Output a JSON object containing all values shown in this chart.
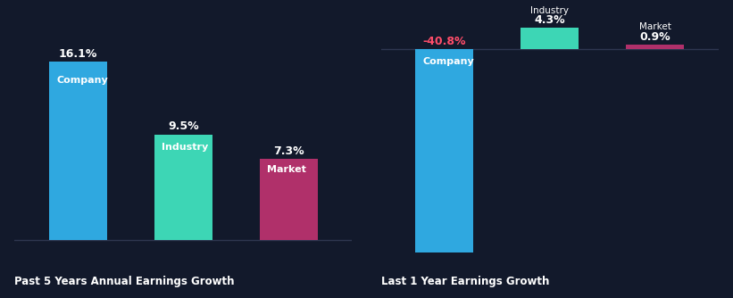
{
  "background_color": "#12192b",
  "chart1": {
    "title": "Past 5 Years Annual Earnings Growth",
    "bars": [
      {
        "label": "Company",
        "value": 16.1,
        "color": "#2fa8e0",
        "label_color": "#ffffff"
      },
      {
        "label": "Industry",
        "value": 9.5,
        "color": "#3dd6b5",
        "label_color": "#ffffff"
      },
      {
        "label": "Market",
        "value": 7.3,
        "color": "#b0306a",
        "label_color": "#ffffff"
      }
    ]
  },
  "chart2": {
    "title": "Last 1 Year Earnings Growth",
    "bars": [
      {
        "label": "Company",
        "value": -40.8,
        "color": "#2fa8e0",
        "label_color": "#ffffff",
        "val_color": "#ff4d6a"
      },
      {
        "label": "Industry",
        "value": 4.3,
        "color": "#3dd6b5",
        "label_color": "#ffffff",
        "val_color": "#ffffff"
      },
      {
        "label": "Market",
        "value": 0.9,
        "color": "#b0306a",
        "label_color": "#ffffff",
        "val_color": "#ffffff"
      }
    ]
  },
  "separator_color": "#2e3650",
  "bar_height": 0.42,
  "bar_gap": 0.18
}
